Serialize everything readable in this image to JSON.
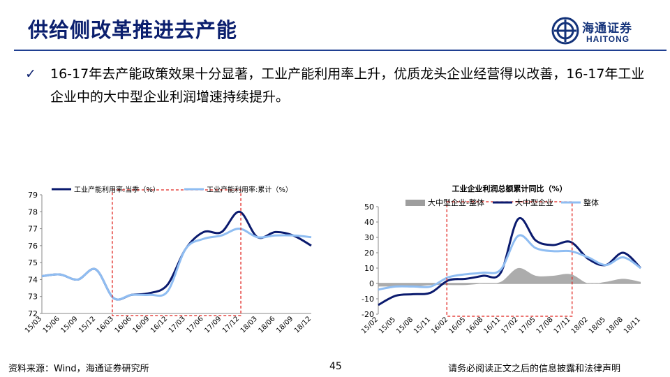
{
  "header": {
    "title": "供给侧改革推进去产能",
    "logo_cn": "海通证券",
    "logo_en": "HAITONG"
  },
  "bullet": {
    "mark": "✓",
    "text": "16-17年去产能政策效果十分显著，工业产能利用率上升，优质龙头企业经营得以改善，16-17年工业企业中的大中型企业利润增速持续提升。"
  },
  "chart_data": [
    {
      "type": "line",
      "title": "",
      "x": [
        "15/03",
        "15/06",
        "15/09",
        "15/12",
        "16/03",
        "16/06",
        "16/09",
        "16/12",
        "17/03",
        "17/06",
        "17/09",
        "17/12",
        "18/03",
        "18/06",
        "18/09",
        "18/12"
      ],
      "ylim": [
        72,
        79
      ],
      "yticks": [
        72,
        73,
        74,
        75,
        76,
        77,
        78,
        79
      ],
      "series": [
        {
          "name": "工业产能利用率:当季（%）",
          "color": "#0a1a6e",
          "values": [
            74.2,
            74.3,
            74.0,
            74.6,
            72.9,
            73.1,
            73.2,
            73.7,
            75.8,
            76.8,
            76.8,
            78.0,
            76.5,
            76.8,
            76.6,
            76.0
          ]
        },
        {
          "name": "工业产能利用率:累计（%）",
          "color": "#8fbdf2",
          "values": [
            74.2,
            74.3,
            74.0,
            74.6,
            72.9,
            73.1,
            73.1,
            73.3,
            75.8,
            76.4,
            76.6,
            77.0,
            76.5,
            76.6,
            76.6,
            76.5
          ]
        }
      ],
      "highlight_range": [
        "16/03",
        "17/12"
      ]
    },
    {
      "type": "line",
      "title": "工业企业利润总额累计同比（%）",
      "x": [
        "15/02",
        "15/05",
        "15/08",
        "15/11",
        "16/02",
        "16/05",
        "16/08",
        "16/11",
        "17/02",
        "17/05",
        "17/08",
        "17/11",
        "18/02",
        "18/05",
        "18/08",
        "18/11"
      ],
      "ylim": [
        -20,
        50
      ],
      "yticks": [
        -20,
        -10,
        0,
        10,
        20,
        30,
        40,
        50
      ],
      "series": [
        {
          "name": "大中型企业-整体",
          "color": "#9e9e9e",
          "style": "area",
          "values": [
            -2,
            -2,
            -2,
            -1,
            -1,
            -1,
            0,
            1,
            10,
            5,
            5,
            6,
            0,
            1,
            3,
            1
          ]
        },
        {
          "name": "大中型企业",
          "color": "#0a1a6e",
          "values": [
            -14,
            -8,
            -7,
            -6,
            2,
            3,
            5,
            7,
            42,
            28,
            25,
            27,
            16,
            12,
            20,
            10
          ]
        },
        {
          "name": "整体",
          "color": "#8fbdf2",
          "values": [
            -4,
            -2,
            -2,
            -2,
            4,
            6,
            7,
            9,
            31,
            23,
            21,
            21,
            17,
            12,
            17,
            10
          ]
        }
      ],
      "highlight_range": [
        "16/02",
        "17/11"
      ]
    }
  ],
  "footer": {
    "source": "资料来源：Wind，海通证券研究所",
    "page": "45",
    "disclaimer": "请务必阅读正文之后的信息披露和法律声明"
  }
}
